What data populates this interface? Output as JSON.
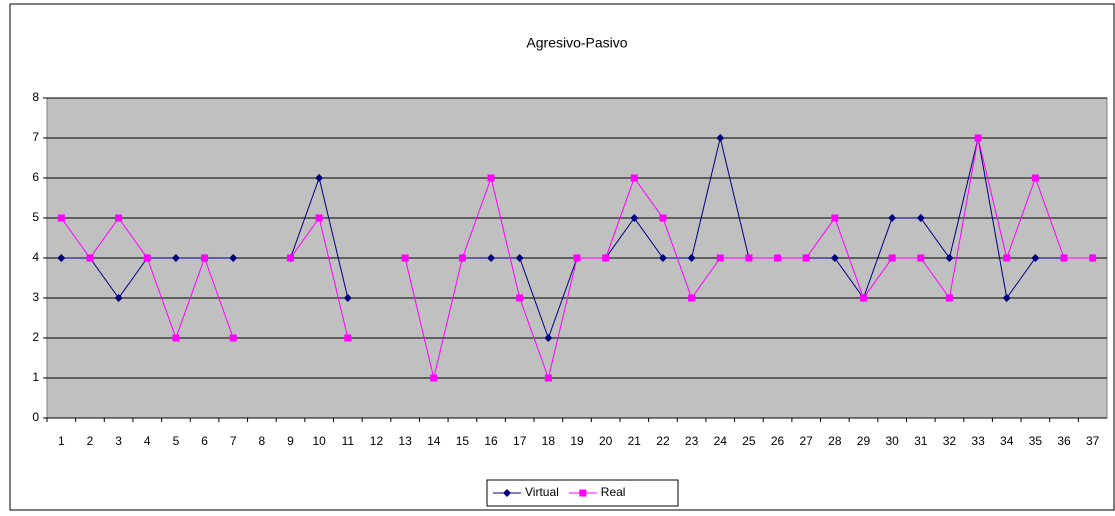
{
  "chart_data": {
    "type": "line",
    "title": "Agresivo-Pasivo",
    "categories": [
      "1",
      "2",
      "3",
      "4",
      "5",
      "6",
      "7",
      "8",
      "9",
      "10",
      "11",
      "12",
      "13",
      "14",
      "15",
      "16",
      "17",
      "18",
      "19",
      "20",
      "21",
      "22",
      "23",
      "24",
      "25",
      "26",
      "27",
      "28",
      "29",
      "30",
      "31",
      "32",
      "33",
      "34",
      "35",
      "36",
      "37"
    ],
    "series": [
      {
        "name": "Virtual",
        "color": "#000080",
        "marker": "diamond",
        "values": [
          4,
          4,
          3,
          4,
          4,
          4,
          4,
          null,
          4,
          6,
          3,
          null,
          null,
          null,
          4,
          4,
          4,
          2,
          4,
          4,
          5,
          4,
          4,
          7,
          4,
          4,
          4,
          4,
          3,
          5,
          5,
          4,
          7,
          3,
          4,
          4,
          4
        ]
      },
      {
        "name": "Real",
        "color": "#ff00ff",
        "marker": "square",
        "values": [
          5,
          4,
          5,
          4,
          2,
          4,
          2,
          null,
          4,
          5,
          2,
          null,
          4,
          1,
          4,
          6,
          3,
          1,
          4,
          4,
          6,
          5,
          3,
          4,
          4,
          4,
          4,
          5,
          3,
          4,
          4,
          3,
          7,
          4,
          6,
          4,
          4
        ]
      }
    ],
    "ylim": [
      0,
      8
    ],
    "yticks": [
      0,
      1,
      2,
      3,
      4,
      5,
      6,
      7,
      8
    ],
    "grid": true,
    "legend": "bottom"
  }
}
